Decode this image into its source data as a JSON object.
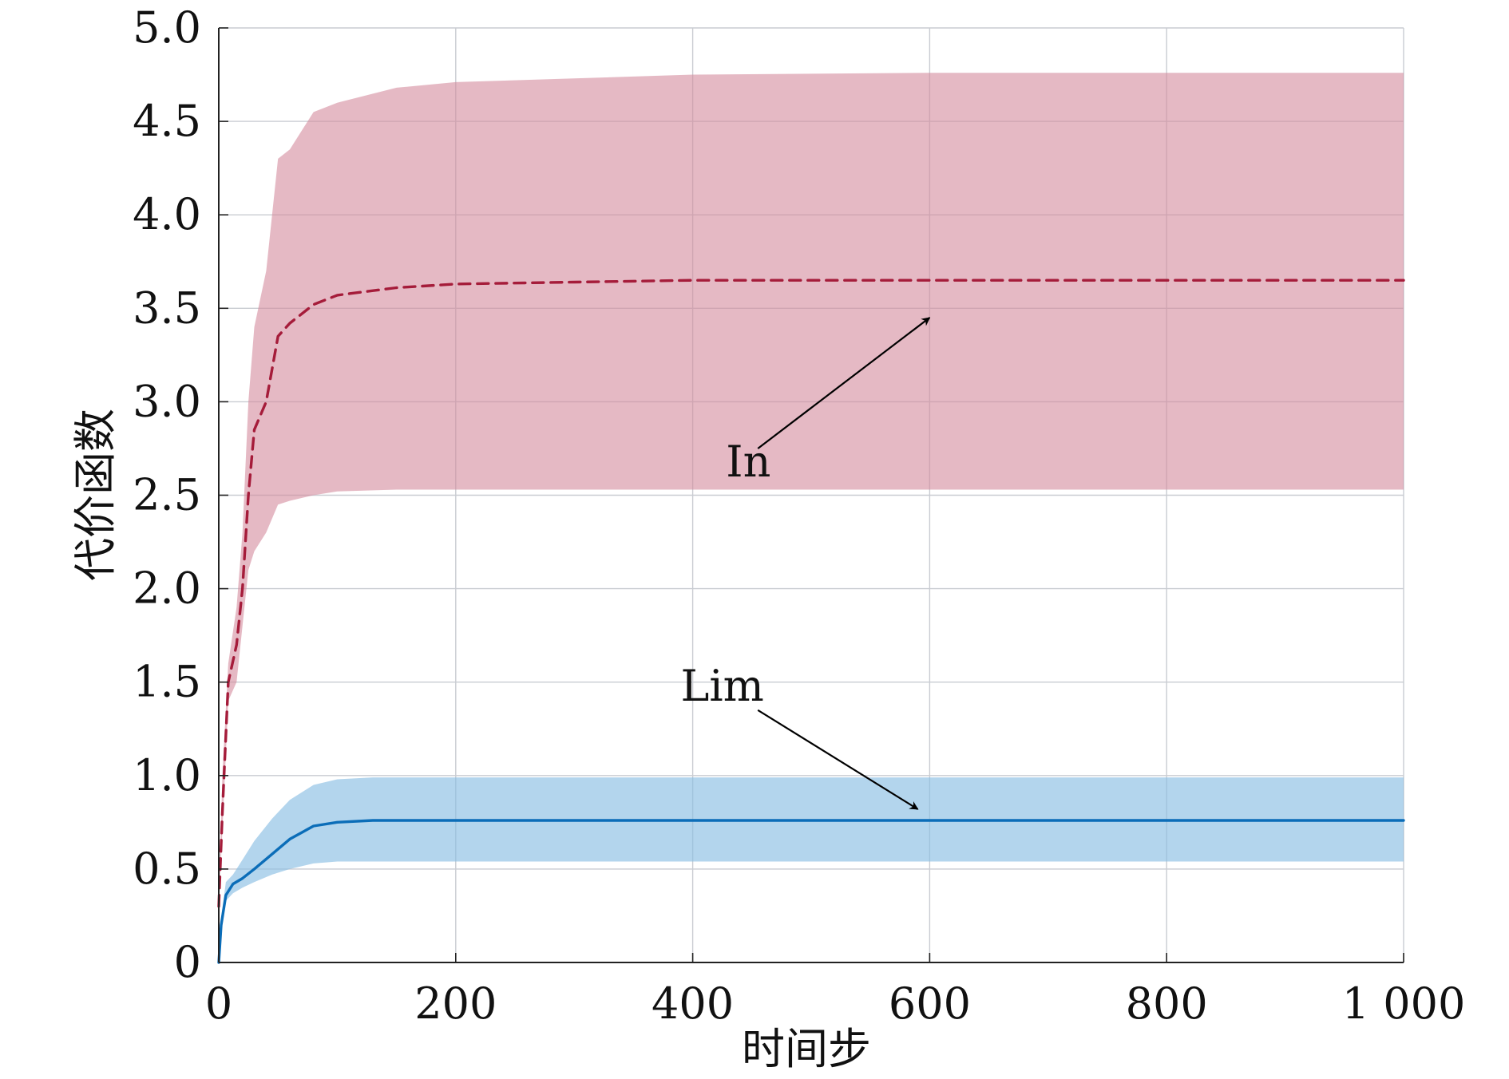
{
  "chart_data": {
    "type": "line",
    "title": "",
    "xlabel": "时间步",
    "ylabel": "代价函数",
    "xlim": [
      0,
      1000
    ],
    "ylim": [
      0,
      5.0
    ],
    "grid": true,
    "xticks": [
      {
        "value": 0,
        "label": "0"
      },
      {
        "value": 200,
        "label": "200"
      },
      {
        "value": 400,
        "label": "400"
      },
      {
        "value": 600,
        "label": "600"
      },
      {
        "value": 800,
        "label": "800"
      },
      {
        "value": 1000,
        "label": "1 000"
      }
    ],
    "yticks": [
      {
        "value": 0,
        "label": "0"
      },
      {
        "value": 0.5,
        "label": "0.5"
      },
      {
        "value": 1.0,
        "label": "1.0"
      },
      {
        "value": 1.5,
        "label": "1.5"
      },
      {
        "value": 2.0,
        "label": "2.0"
      },
      {
        "value": 2.5,
        "label": "2.5"
      },
      {
        "value": 3.0,
        "label": "3.0"
      },
      {
        "value": 3.5,
        "label": "3.5"
      },
      {
        "value": 4.0,
        "label": "4.0"
      },
      {
        "value": 4.5,
        "label": "4.5"
      },
      {
        "value": 5.0,
        "label": "5.0"
      }
    ],
    "series": [
      {
        "name": "In",
        "color": "#a51c3a",
        "band_color": "#d48a9c",
        "band_opacity": 0.6,
        "line_style": "dashed",
        "points": [
          {
            "x": 0,
            "y": 0.3,
            "lower": 0.3,
            "upper": 0.3
          },
          {
            "x": 3,
            "y": 0.8,
            "lower": 0.7,
            "upper": 1.0
          },
          {
            "x": 8,
            "y": 1.5,
            "lower": 1.4,
            "upper": 1.6
          },
          {
            "x": 15,
            "y": 1.7,
            "lower": 1.5,
            "upper": 1.9
          },
          {
            "x": 20,
            "y": 2.0,
            "lower": 1.8,
            "upper": 2.3
          },
          {
            "x": 25,
            "y": 2.5,
            "lower": 2.1,
            "upper": 3.0
          },
          {
            "x": 30,
            "y": 2.85,
            "lower": 2.2,
            "upper": 3.4
          },
          {
            "x": 40,
            "y": 3.0,
            "lower": 2.3,
            "upper": 3.7
          },
          {
            "x": 50,
            "y": 3.35,
            "lower": 2.45,
            "upper": 4.3
          },
          {
            "x": 60,
            "y": 3.42,
            "lower": 2.47,
            "upper": 4.35
          },
          {
            "x": 80,
            "y": 3.52,
            "lower": 2.5,
            "upper": 4.55
          },
          {
            "x": 100,
            "y": 3.57,
            "lower": 2.52,
            "upper": 4.6
          },
          {
            "x": 150,
            "y": 3.61,
            "lower": 2.53,
            "upper": 4.68
          },
          {
            "x": 200,
            "y": 3.63,
            "lower": 2.53,
            "upper": 4.71
          },
          {
            "x": 300,
            "y": 3.64,
            "lower": 2.53,
            "upper": 4.73
          },
          {
            "x": 400,
            "y": 3.65,
            "lower": 2.53,
            "upper": 4.75
          },
          {
            "x": 600,
            "y": 3.65,
            "lower": 2.53,
            "upper": 4.76
          },
          {
            "x": 800,
            "y": 3.65,
            "lower": 2.53,
            "upper": 4.76
          },
          {
            "x": 1000,
            "y": 3.65,
            "lower": 2.53,
            "upper": 4.76
          }
        ]
      },
      {
        "name": "Lim",
        "color": "#0b6db8",
        "band_color": "#8bbfe3",
        "band_opacity": 0.65,
        "line_style": "solid",
        "points": [
          {
            "x": 0,
            "y": 0.0,
            "lower": 0.0,
            "upper": 0.0
          },
          {
            "x": 2,
            "y": 0.2,
            "lower": 0.18,
            "upper": 0.24
          },
          {
            "x": 6,
            "y": 0.36,
            "lower": 0.33,
            "upper": 0.43
          },
          {
            "x": 12,
            "y": 0.42,
            "lower": 0.37,
            "upper": 0.47
          },
          {
            "x": 20,
            "y": 0.45,
            "lower": 0.4,
            "upper": 0.55
          },
          {
            "x": 30,
            "y": 0.5,
            "lower": 0.43,
            "upper": 0.65
          },
          {
            "x": 45,
            "y": 0.58,
            "lower": 0.47,
            "upper": 0.77
          },
          {
            "x": 60,
            "y": 0.66,
            "lower": 0.5,
            "upper": 0.87
          },
          {
            "x": 80,
            "y": 0.73,
            "lower": 0.53,
            "upper": 0.95
          },
          {
            "x": 100,
            "y": 0.75,
            "lower": 0.54,
            "upper": 0.98
          },
          {
            "x": 130,
            "y": 0.76,
            "lower": 0.54,
            "upper": 0.99
          },
          {
            "x": 200,
            "y": 0.76,
            "lower": 0.54,
            "upper": 0.99
          },
          {
            "x": 400,
            "y": 0.76,
            "lower": 0.54,
            "upper": 0.99
          },
          {
            "x": 600,
            "y": 0.76,
            "lower": 0.54,
            "upper": 0.99
          },
          {
            "x": 800,
            "y": 0.76,
            "lower": 0.54,
            "upper": 0.99
          },
          {
            "x": 1000,
            "y": 0.76,
            "lower": 0.54,
            "upper": 0.99
          }
        ]
      }
    ],
    "annotations": [
      {
        "text": "In",
        "label_x": 447,
        "label_y": 2.6,
        "arrow_from_x": 455,
        "arrow_from_y": 2.75,
        "arrow_to_x": 600,
        "arrow_to_y": 3.45
      },
      {
        "text": "Lim",
        "label_x": 425,
        "label_y": 1.4,
        "arrow_from_x": 455,
        "arrow_from_y": 1.35,
        "arrow_to_x": 590,
        "arrow_to_y": 0.82
      }
    ]
  }
}
